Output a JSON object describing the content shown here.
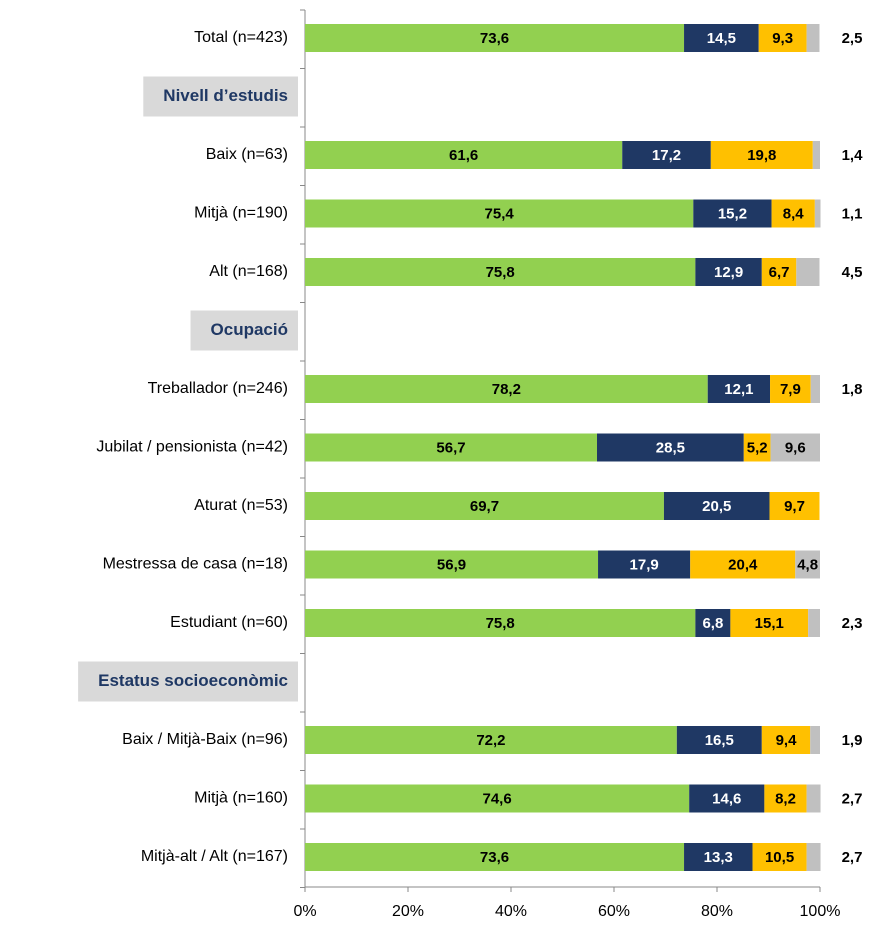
{
  "chart_data": {
    "type": "stacked_barh",
    "categories": [
      "Total (n=423)",
      "Nivell d’estudis",
      "Baix (n=63)",
      "Mitjà (n=190)",
      "Alt (n=168)",
      "Ocupació",
      "Treballador (n=246)",
      "Jubilat / pensionista (n=42)",
      "Aturat (n=53)",
      "Mestressa de casa (n=18)",
      "Estudiant (n=60)",
      "Estatus socioeconòmic",
      "Baix / Mitjà-Baix (n=96)",
      "Mitjà (n=160)",
      "Mitjà-alt / Alt (n=167)"
    ],
    "series": [
      {
        "color": "#92d050",
        "values": [
          73.6,
          null,
          61.6,
          75.4,
          75.8,
          null,
          78.2,
          56.7,
          69.7,
          56.9,
          75.8,
          null,
          72.2,
          74.6,
          73.6
        ],
        "value_labels": [
          "73,6",
          null,
          "61,6",
          "75,4",
          "75,8",
          null,
          "78,2",
          "56,7",
          "69,7",
          "56,9",
          "75,8",
          null,
          "72,2",
          "74,6",
          "73,6"
        ]
      },
      {
        "color": "#1f3864",
        "values": [
          14.5,
          null,
          17.2,
          15.2,
          12.9,
          null,
          12.1,
          28.5,
          20.5,
          17.9,
          6.8,
          null,
          16.5,
          14.6,
          13.3
        ],
        "value_labels": [
          "14,5",
          null,
          "17,2",
          "15,2",
          "12,9",
          null,
          "12,1",
          "28,5",
          "20,5",
          "17,9",
          "6,8",
          null,
          "16,5",
          "14,6",
          "13,3"
        ]
      },
      {
        "color": "#ffc000",
        "values": [
          9.3,
          null,
          19.8,
          8.4,
          6.7,
          null,
          7.9,
          5.2,
          9.7,
          20.4,
          15.1,
          null,
          9.4,
          8.2,
          10.5
        ],
        "value_labels": [
          "9,3",
          null,
          "19,8",
          "8,4",
          "6,7",
          null,
          "7,9",
          "5,2",
          "9,7",
          "20,4",
          "15,1",
          null,
          "9,4",
          "8,2",
          "10,5"
        ]
      },
      {
        "color": "#c0c0c0",
        "values": [
          2.5,
          null,
          1.4,
          1.1,
          4.5,
          null,
          1.8,
          9.6,
          null,
          4.8,
          2.3,
          null,
          1.9,
          2.7,
          2.7
        ],
        "value_labels": [
          "2,5",
          null,
          "1,4",
          "1,1",
          "4,5",
          null,
          "1,8",
          "9,6",
          null,
          "4,8",
          "2,3",
          null,
          "1,9",
          "2,7",
          "2,7"
        ]
      }
    ],
    "xlim": [
      0,
      100
    ],
    "xticks": [
      {
        "value": 0,
        "label": "0%"
      },
      {
        "value": 20,
        "label": "20%"
      },
      {
        "value": 40,
        "label": "40%"
      },
      {
        "value": 60,
        "label": "60%"
      },
      {
        "value": 80,
        "label": "80%"
      },
      {
        "value": 100,
        "label": "100%"
      }
    ]
  }
}
